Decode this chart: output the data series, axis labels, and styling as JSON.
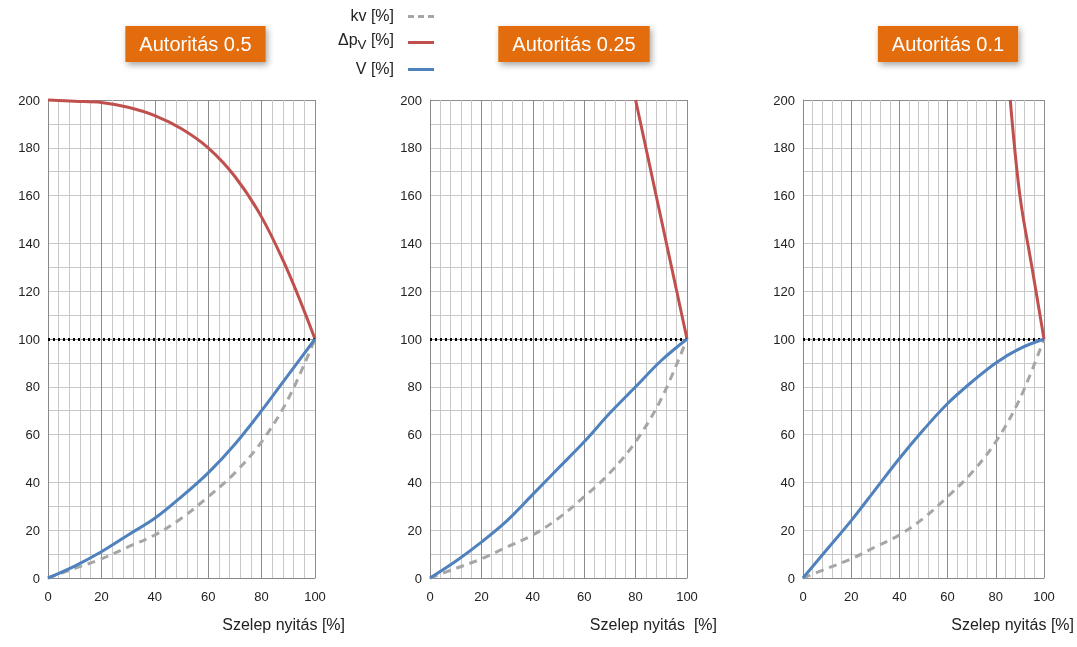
{
  "chart_data": [
    {
      "type": "line",
      "title": "Autoritás 0.5",
      "xlabel": "Szelep nyitás [%]",
      "x": [
        0,
        10,
        20,
        30,
        40,
        50,
        60,
        70,
        80,
        90,
        100
      ],
      "series": [
        {
          "name": "kv [%]",
          "color": "#a6a6a6",
          "line_style": "dashed",
          "values": [
            0,
            4,
            8,
            13,
            18,
            25,
            34,
            44,
            57,
            75,
            100
          ]
        },
        {
          "name": "Δp$_{V}$ [%]",
          "color": "#c0504d",
          "values": [
            200,
            199.5,
            199,
            197,
            193.5,
            188,
            180,
            168,
            151,
            128,
            100
          ]
        },
        {
          "name": "V [%]",
          "color": "#4f81bd",
          "values": [
            0,
            5,
            11,
            18,
            25,
            34,
            44,
            56,
            70,
            85,
            100
          ]
        }
      ],
      "xlim": [
        0,
        100
      ],
      "xticks": [
        0,
        20,
        40,
        60,
        80,
        100
      ],
      "ylim": [
        0,
        200
      ],
      "yticks": [
        0,
        20,
        40,
        60,
        80,
        100,
        120,
        140,
        160,
        180,
        200
      ],
      "grid": true,
      "legend": "top right",
      "marker": "none",
      "line_style": "solid",
      "ref_lines": [
        {
          "axis": "y",
          "value": 100,
          "color": "#000000",
          "line_style": "dotted"
        }
      ]
    },
    {
      "type": "line",
      "title": "Autoritás 0.25",
      "xlabel": "Szelep nyitás  [%]",
      "x": [
        0,
        10,
        20,
        30,
        40,
        50,
        60,
        70,
        80,
        90,
        100
      ],
      "series": [
        {
          "color": "#a6a6a6",
          "line_style": "dashed",
          "values": [
            0,
            4,
            8,
            13,
            18,
            25,
            34,
            44,
            57,
            75,
            100
          ]
        },
        {
          "color": "#c0504d",
          "x": [
            80,
            90,
            100
          ],
          "values": [
            200,
            150,
            100
          ]
        },
        {
          "color": "#4f81bd",
          "values": [
            0,
            7,
            15,
            24,
            35,
            46,
            57,
            69,
            80,
            91,
            100
          ]
        }
      ],
      "xlim": [
        0,
        100
      ],
      "xticks": [
        0,
        20,
        40,
        60,
        80,
        100
      ],
      "ylim": [
        0,
        200
      ],
      "yticks": [
        0,
        20,
        40,
        60,
        80,
        100,
        120,
        140,
        160,
        180,
        200
      ],
      "grid": true,
      "marker": "none",
      "line_style": "solid",
      "ref_lines": [
        {
          "axis": "y",
          "value": 100,
          "color": "#000000",
          "line_style": "dotted"
        }
      ]
    },
    {
      "type": "line",
      "title": "Autoritás 0.1",
      "xlabel": "Szelep nyitás [%]",
      "x": [
        0,
        10,
        20,
        30,
        40,
        50,
        60,
        70,
        80,
        90,
        100
      ],
      "series": [
        {
          "color": "#a6a6a6",
          "line_style": "dashed",
          "values": [
            0,
            4,
            8,
            13,
            18,
            25,
            34,
            44,
            57,
            75,
            100
          ]
        },
        {
          "color": "#c0504d",
          "x": [
            86,
            90,
            95,
            100
          ],
          "values": [
            200,
            160,
            130,
            100
          ]
        },
        {
          "color": "#4f81bd",
          "values": [
            0,
            12,
            24,
            37,
            50,
            62,
            73,
            82,
            90,
            96,
            100
          ]
        }
      ],
      "xlim": [
        0,
        100
      ],
      "xticks": [
        0,
        20,
        40,
        60,
        80,
        100
      ],
      "ylim": [
        0,
        200
      ],
      "yticks": [
        0,
        20,
        40,
        60,
        80,
        100,
        120,
        140,
        160,
        180,
        200
      ],
      "grid": true,
      "marker": "none",
      "line_style": "solid",
      "ref_lines": [
        {
          "axis": "y",
          "value": 100,
          "color": "#000000",
          "line_style": "dotted"
        }
      ]
    }
  ]
}
